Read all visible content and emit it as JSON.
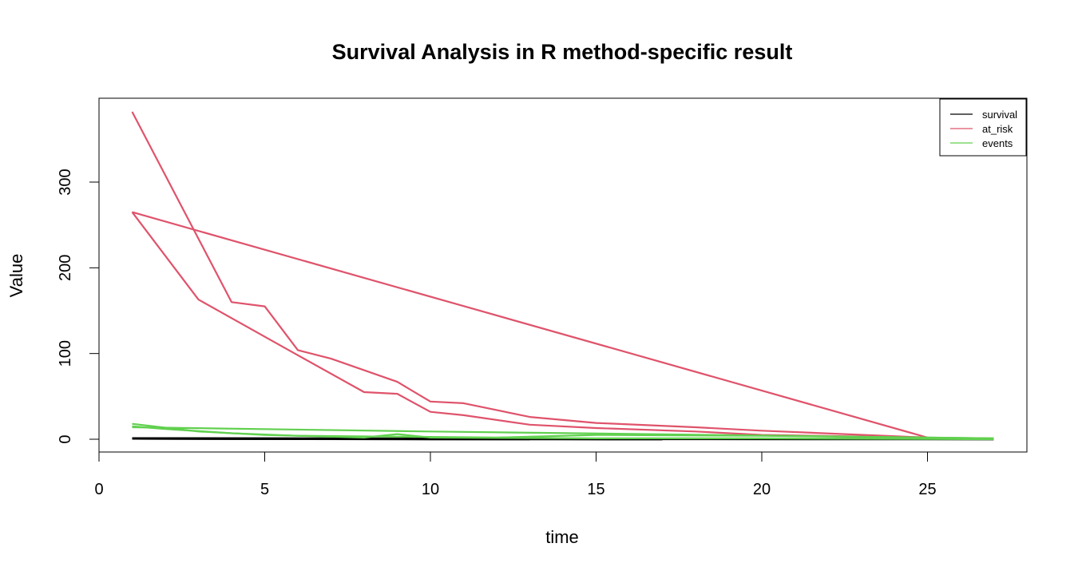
{
  "chart_data": {
    "type": "line",
    "title": "Survival Analysis in R method-specific result",
    "xlabel": "time",
    "ylabel": "Value",
    "xlim": [
      0,
      28
    ],
    "ylim": [
      -15,
      400
    ],
    "x_ticks": [
      0,
      5,
      10,
      15,
      20,
      25
    ],
    "y_ticks": [
      0,
      100,
      200,
      300
    ],
    "grid": false,
    "legend": {
      "position": "top-right",
      "entries": [
        {
          "name": "survival",
          "color": "#000000"
        },
        {
          "name": "at_risk",
          "color": "#DF536B"
        },
        {
          "name": "events",
          "color": "#61D04F"
        }
      ]
    },
    "series": [
      {
        "name": "survival",
        "color": "#000000",
        "x": [
          1,
          5,
          9,
          14,
          17
        ],
        "y": [
          0.9,
          0.6,
          0.4,
          0.2,
          0.1
        ]
      },
      {
        "name": "survival",
        "color": "#000000",
        "x": [
          1,
          6,
          11,
          16,
          25,
          27
        ],
        "y": [
          0.95,
          0.75,
          0.55,
          0.35,
          0.2,
          0.1
        ]
      },
      {
        "name": "survival",
        "color": "#000000",
        "x": [
          1,
          4,
          7,
          10,
          13
        ],
        "y": [
          0.9,
          0.7,
          0.5,
          0.3,
          0.15
        ]
      },
      {
        "name": "at_risk",
        "color": "#DF536B",
        "x": [
          1,
          25
        ],
        "y": [
          265,
          2
        ]
      },
      {
        "name": "at_risk",
        "color": "#DF536B",
        "x": [
          1,
          3,
          6,
          8,
          9,
          10,
          11,
          13,
          15,
          18,
          20,
          25
        ],
        "y": [
          265,
          163,
          98,
          55,
          53,
          32,
          28,
          17,
          13,
          9,
          5,
          2
        ]
      },
      {
        "name": "at_risk",
        "color": "#DF536B",
        "x": [
          1,
          4,
          5,
          6,
          7,
          9,
          10,
          11,
          13,
          15,
          18,
          20,
          25
        ],
        "y": [
          382,
          160,
          155,
          104,
          94,
          67,
          44,
          42,
          26,
          19,
          14,
          10,
          2
        ]
      },
      {
        "name": "events",
        "color": "#61D04F",
        "x": [
          1,
          10,
          27
        ],
        "y": [
          14,
          9,
          1
        ]
      },
      {
        "name": "events",
        "color": "#61D04F",
        "x": [
          1,
          3,
          5,
          8,
          9,
          10,
          15,
          20,
          27
        ],
        "y": [
          18,
          9,
          5,
          2,
          6,
          2,
          1,
          1,
          0
        ]
      },
      {
        "name": "events",
        "color": "#61D04F",
        "x": [
          1,
          2,
          4,
          6,
          9,
          12,
          15,
          20,
          25,
          27
        ],
        "y": [
          15,
          12,
          7,
          4,
          3,
          2,
          5,
          4,
          2,
          1
        ]
      }
    ]
  }
}
